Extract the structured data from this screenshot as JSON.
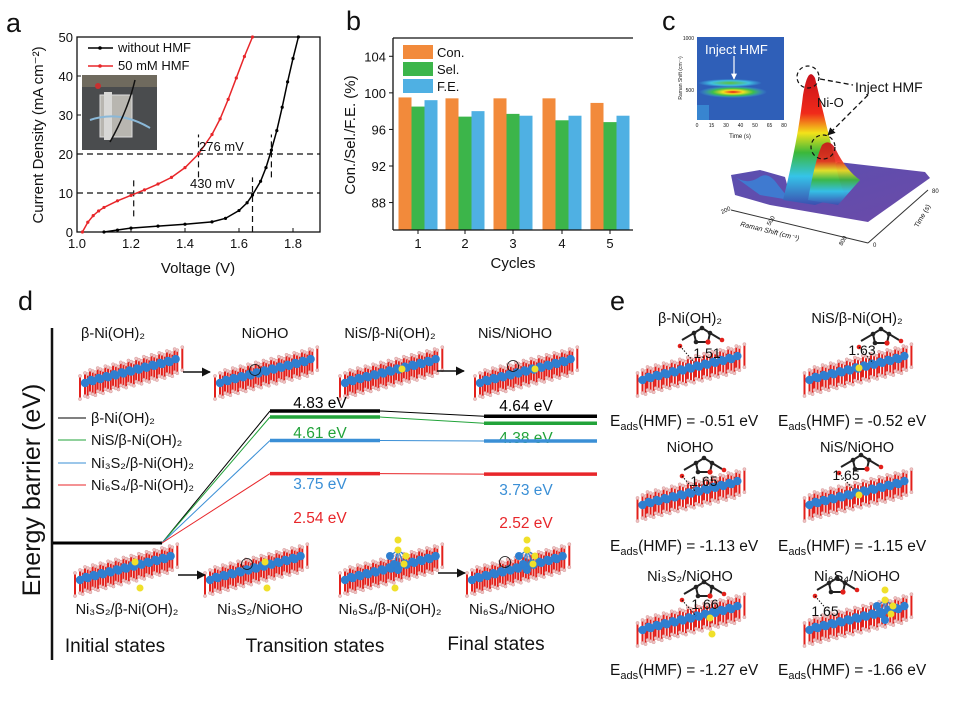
{
  "panel_labels": {
    "a": "a",
    "b": "b",
    "c": "c",
    "d": "d",
    "e": "e"
  },
  "colors": {
    "black": "#000000",
    "red": "#e8262a",
    "green": "#22a33a",
    "blue": "#3a8fd6",
    "con": "#f28a3b",
    "sel": "#3cb54a",
    "fe": "#4fb0e3",
    "ni_atom": "#2f7fd0",
    "o_atom": "#e3201b",
    "s_atom": "#f0e02a"
  },
  "chart_data": [
    {
      "panel": "a",
      "type": "line",
      "xlabel": "Voltage (V)",
      "ylabel": "Current Density (mA cm⁻²)",
      "xlim": [
        1.0,
        1.9
      ],
      "ylim": [
        0,
        50
      ],
      "xticks": [
        "1.0",
        "1.2",
        "1.4",
        "1.6",
        "1.8"
      ],
      "yticks": [
        "0",
        "10",
        "20",
        "30",
        "40",
        "50"
      ],
      "legend_position": "top-left",
      "series": [
        {
          "name": "without HMF",
          "color": "#000000",
          "x": [
            1.1,
            1.15,
            1.2,
            1.3,
            1.4,
            1.5,
            1.55,
            1.6,
            1.63,
            1.65,
            1.68,
            1.7,
            1.72,
            1.74,
            1.76,
            1.78,
            1.8,
            1.82
          ],
          "y": [
            0,
            0.5,
            1,
            1.5,
            2,
            2.6,
            3.5,
            5.5,
            7.5,
            9.5,
            13,
            16.5,
            21,
            26,
            32,
            38.5,
            44.5,
            50
          ]
        },
        {
          "name": "50 mM HMF",
          "color": "#e8262a",
          "x": [
            1.02,
            1.04,
            1.06,
            1.08,
            1.1,
            1.15,
            1.2,
            1.25,
            1.3,
            1.35,
            1.4,
            1.45,
            1.5,
            1.53,
            1.56,
            1.59,
            1.62,
            1.65
          ],
          "y": [
            0,
            2.5,
            4.2,
            5.4,
            6.3,
            8,
            9.4,
            10.8,
            12.3,
            14,
            16.5,
            20,
            25,
            29,
            34,
            39.5,
            45,
            50
          ]
        }
      ],
      "annotations": [
        {
          "text": "276 mV",
          "at_current": 20,
          "from_v": 1.45,
          "to_v": 1.72
        },
        {
          "text": "430 mV",
          "at_current": 10,
          "from_v": 1.21,
          "to_v": 1.65
        }
      ]
    },
    {
      "panel": "b",
      "type": "bar",
      "xlabel": "Cycles",
      "ylabel": "Con./Sel./F.E. (%)",
      "categories": [
        "1",
        "2",
        "3",
        "4",
        "5"
      ],
      "ylim": [
        85,
        106
      ],
      "yticks": [
        "88",
        "92",
        "96",
        "100",
        "104"
      ],
      "legend_position": "top-left",
      "series": [
        {
          "name": "Con.",
          "color": "#f28a3b",
          "values": [
            99.5,
            99.4,
            99.4,
            99.4,
            98.9
          ]
        },
        {
          "name": "Sel.",
          "color": "#3cb54a",
          "values": [
            98.5,
            97.4,
            97.7,
            97.0,
            96.8
          ]
        },
        {
          "name": "F.E.",
          "color": "#4fb0e3",
          "values": [
            99.2,
            98.0,
            97.5,
            97.5,
            97.5
          ]
        }
      ]
    },
    {
      "panel": "d",
      "type": "line",
      "ylabel": "Energy barrier (eV)",
      "stages": [
        "Initial states",
        "Transition states",
        "Final states"
      ],
      "series": [
        {
          "name": "β-Ni(OH)₂",
          "color": "#000000",
          "ts": 4.83,
          "fs": 4.64,
          "ts_label": "4.83 eV",
          "fs_label": "4.64 eV"
        },
        {
          "name": "NiS/β-Ni(OH)₂",
          "color": "#22a33a",
          "ts": 4.61,
          "fs": 4.38,
          "ts_label": "4.61 eV",
          "fs_label": "4.38 eV"
        },
        {
          "name": "Ni₃S₂/β-Ni(OH)₂",
          "color": "#3a8fd6",
          "ts": 3.75,
          "fs": 3.73,
          "ts_label": "3.75 eV",
          "fs_label": "3.73 eV"
        },
        {
          "name": "Ni₆S₄/β-Ni(OH)₂",
          "color": "#e8262a",
          "ts": 2.54,
          "fs": 2.52,
          "ts_label": "2.54 eV",
          "fs_label": "2.52 eV"
        }
      ]
    }
  ],
  "panel_c": {
    "inset_title": "Inject  HMF",
    "inset_ylabel": "Raman Shift (cm⁻¹)",
    "inset_xlabel": "Time (s)",
    "inset_yticks": [
      "1000",
      "500"
    ],
    "inset_xticks": [
      "0",
      "15",
      "30",
      "40",
      "50",
      "65",
      "80"
    ],
    "annotation": "Inject  HMF",
    "peak_label": "Ni-O",
    "raman_axis_label": "Raman Shift (cm⁻¹)",
    "raman_ticks": [
      "200",
      "500",
      "800"
    ],
    "time_axis_label": "Time (s)",
    "time_ticks": [
      "0",
      "80"
    ]
  },
  "panel_d": {
    "top_structures": [
      "β-Ni(OH)₂",
      "NiOHO",
      "NiS/β-Ni(OH)₂",
      "NiS/NiOHO"
    ],
    "bottom_structures": [
      "Ni₃S₂/β-Ni(OH)₂",
      "Ni₃S₂/NiOHO",
      "Ni₆S₄/β-Ni(OH)₂",
      "Ni₆S₄/NiOHO"
    ]
  },
  "panel_e": {
    "items": [
      {
        "title": "β-Ni(OH)₂",
        "distance": "1.51",
        "e_sym": "E",
        "e_sub": "ads",
        "e_rest": "(HMF) = -0.51 eV"
      },
      {
        "title": "NiS/β-Ni(OH)₂",
        "distance": "1.63",
        "e_sym": "E",
        "e_sub": "ads",
        "e_rest": "(HMF) = -0.52 eV"
      },
      {
        "title": "NiOHO",
        "distance": "1.65",
        "e_sym": "E",
        "e_sub": "ads",
        "e_rest": "(HMF) = -1.13 eV"
      },
      {
        "title": "NiS/NiOHO",
        "distance": "1.65",
        "e_sym": "E",
        "e_sub": "ads",
        "e_rest": "(HMF) = -1.15 eV"
      },
      {
        "title": "Ni₃S₂/NiOHO",
        "distance": "1.66",
        "e_sym": "E",
        "e_sub": "ads",
        "e_rest": "(HMF) = -1.27 eV"
      },
      {
        "title": "Ni₆S₄/NiOHO",
        "distance": "1.65",
        "e_sym": "E",
        "e_sub": "ads",
        "e_rest": "(HMF) = -1.66 eV"
      }
    ]
  }
}
